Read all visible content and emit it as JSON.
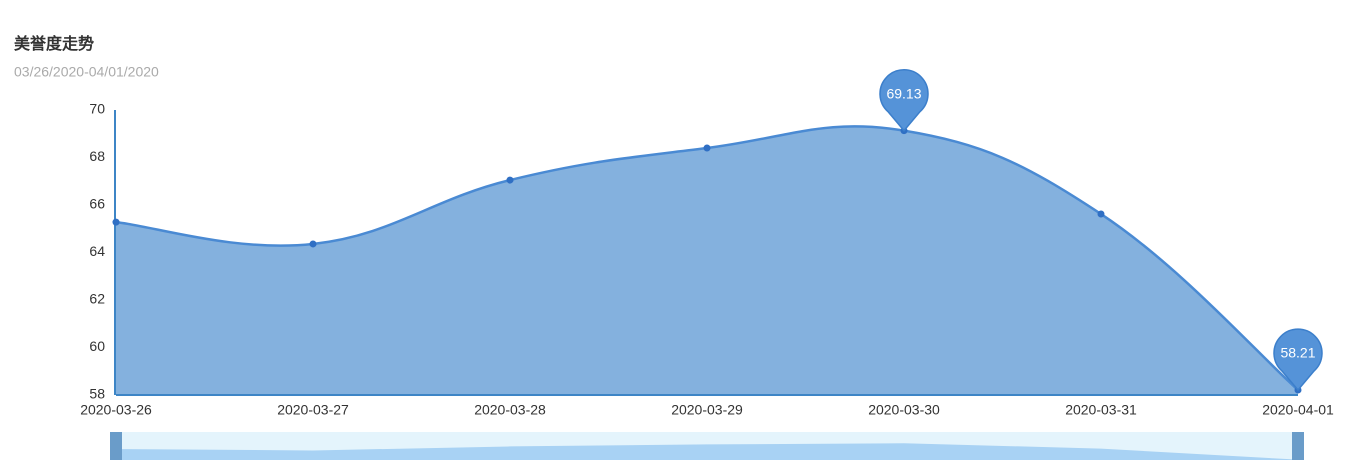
{
  "chart_data": {
    "type": "area",
    "title": "美誉度走势",
    "subtitle": "03/26/2020-04/01/2020",
    "categories": [
      "2020-03-26",
      "2020-03-27",
      "2020-03-28",
      "2020-03-29",
      "2020-03-30",
      "2020-03-31",
      "2020-04-01"
    ],
    "values": [
      65.28,
      64.36,
      67.05,
      68.4,
      69.13,
      65.62,
      58.21
    ],
    "color": "#4a8ad3",
    "ylim": [
      58,
      70
    ],
    "yticks": [
      58,
      60,
      62,
      64,
      66,
      68,
      70
    ],
    "grid": false
  }
}
